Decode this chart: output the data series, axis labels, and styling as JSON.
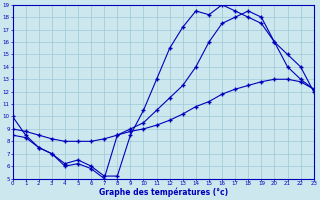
{
  "xlabel": "Graphe des températures (°c)",
  "background_color": "#cce8ee",
  "grid_color": "#9cc8d5",
  "line_color": "#0000bb",
  "xmin": 0,
  "xmax": 23,
  "ymin": 5,
  "ymax": 19,
  "curve1_x": [
    0,
    1,
    2,
    3,
    4,
    5,
    6,
    7,
    8,
    9,
    10,
    11,
    12,
    13,
    14,
    15,
    16,
    17,
    18,
    19,
    20,
    21,
    22,
    23
  ],
  "curve1_y": [
    10.0,
    8.5,
    7.5,
    7.0,
    6.2,
    6.5,
    6.0,
    5.2,
    5.2,
    8.5,
    10.5,
    13.0,
    15.5,
    17.2,
    18.5,
    18.2,
    19.0,
    18.5,
    18.0,
    17.5,
    16.0,
    14.0,
    13.0,
    12.2
  ],
  "curve2_x": [
    0,
    1,
    2,
    3,
    4,
    5,
    6,
    7,
    8,
    9,
    10,
    11,
    12,
    13,
    14,
    15,
    16,
    17,
    18,
    19,
    20,
    21,
    22,
    23
  ],
  "curve2_y": [
    9.0,
    8.8,
    8.5,
    8.2,
    8.0,
    8.0,
    8.0,
    8.2,
    8.5,
    8.8,
    9.0,
    9.3,
    9.7,
    10.2,
    10.8,
    11.2,
    11.8,
    12.2,
    12.5,
    12.8,
    13.0,
    13.0,
    12.8,
    12.2
  ],
  "curve3_x": [
    0,
    1,
    2,
    3,
    4,
    5,
    6,
    7,
    8,
    9,
    10,
    11,
    12,
    13,
    14,
    15,
    16,
    17,
    18,
    19,
    20,
    21,
    22,
    23
  ],
  "curve3_y": [
    8.5,
    8.3,
    7.5,
    7.0,
    6.0,
    6.2,
    5.8,
    5.0,
    8.5,
    9.0,
    9.5,
    10.5,
    11.5,
    12.5,
    14.0,
    16.0,
    17.5,
    18.0,
    18.5,
    18.0,
    16.0,
    15.0,
    14.0,
    12.0
  ]
}
